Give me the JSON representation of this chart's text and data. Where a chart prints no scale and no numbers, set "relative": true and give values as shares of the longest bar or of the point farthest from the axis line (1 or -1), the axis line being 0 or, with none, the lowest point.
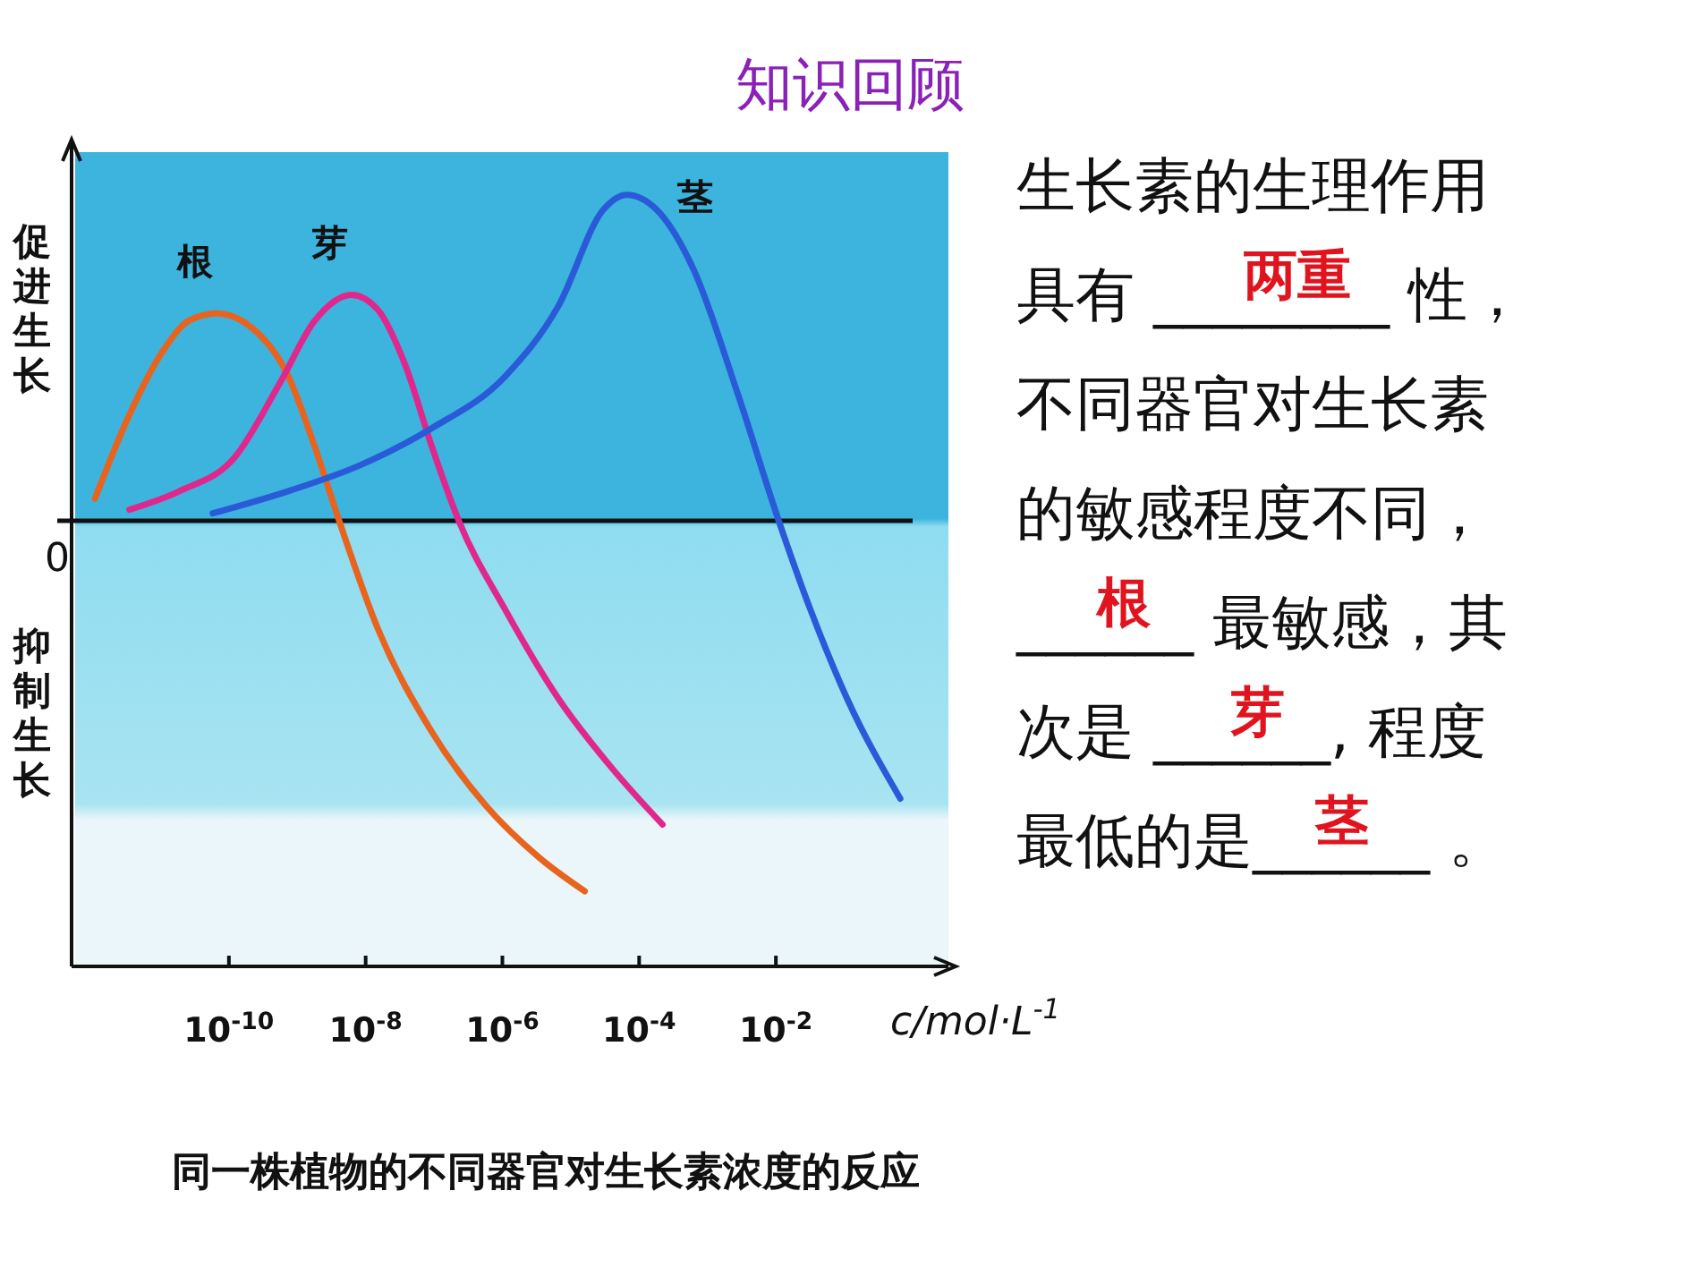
{
  "chart_data": {
    "type": "line",
    "title": "知识回顾",
    "xlabel": "c/mol·L$^{-1}$",
    "relative": true,
    "log": "x",
    "legend": false,
    "grid": false,
    "xlim": [
      5e-13,
      1
    ],
    "xticks": [
      {
        "value": 1e-10,
        "label": "10$^{-10}$"
      },
      {
        "value": 1e-08,
        "label": "10$^{-8}$"
      },
      {
        "value": 1e-06,
        "label": "10$^{-6}$"
      },
      {
        "value": 0.0001,
        "label": "10$^{-4}$"
      },
      {
        "value": 0.01,
        "label": "10$^{-2}$"
      }
    ],
    "series": [
      {
        "name": "根",
        "color": "#e8641e",
        "x": [
          1.1e-12,
          3.2e-12,
          1.1e-11,
          2.6e-11,
          6.6e-11,
          2.2e-10,
          7.4e-10,
          1.8e-09,
          4.1e-09,
          1.5e-08,
          9.3e-08,
          5.8e-07,
          3.5e-06,
          1.6e-05
        ],
        "values": [
          0.06,
          0.27,
          0.46,
          0.54,
          0.56,
          0.52,
          0.39,
          0.2,
          0,
          -0.29,
          -0.57,
          -0.77,
          -0.91,
          -1
        ]
      },
      {
        "name": "芽",
        "color": "#e0288c",
        "x": [
          3.5e-12,
          1.9e-11,
          1.2e-10,
          5.5e-10,
          1.8e-09,
          6.2e-09,
          1.5e-08,
          3.8e-08,
          9.3e-08,
          2.3e-07,
          1.1e-06,
          6.6e-06,
          4.1e-05,
          0.00022
        ],
        "values": [
          0.03,
          0.08,
          0.17,
          0.37,
          0.54,
          0.61,
          0.57,
          0.42,
          0.2,
          0,
          -0.24,
          -0.48,
          -0.67,
          -0.82
        ]
      },
      {
        "name": "茎",
        "color": "#2a5ad8",
        "x": [
          5.8e-11,
          7.4e-10,
          8.3e-09,
          9.3e-08,
          1.1e-06,
          6.6e-06,
          3e-05,
          6.6e-05,
          0.00018,
          0.00062,
          0.0028,
          0.011,
          0.032,
          0.11,
          0.66
        ],
        "values": [
          0.02,
          0.08,
          0.15,
          0.25,
          0.39,
          0.58,
          0.84,
          0.88,
          0.84,
          0.68,
          0.34,
          0,
          -0.24,
          -0.48,
          -0.75
        ]
      }
    ],
    "annotations": [
      "促进生长",
      "0",
      "抑制生长",
      "同一株植物的不同器官对生长素浓度的反应",
      "生长素的生理作用",
      "具有 ________ 性，",
      "不同器官对生长素",
      "的敏感程度不同，",
      "______ 最敏感，其",
      "次是 ______, 程度",
      "最低的是______ 。",
      "两重",
      "根",
      "芽",
      "茎"
    ]
  }
}
